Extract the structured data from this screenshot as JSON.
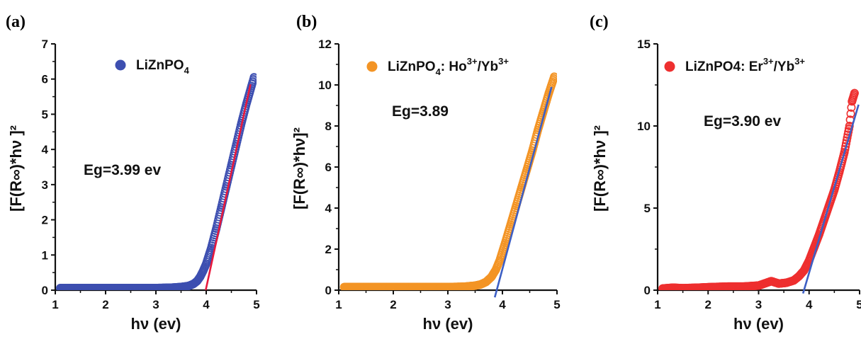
{
  "chart_data": [
    {
      "type": "scatter",
      "panel": "(a)",
      "xlabel": "hν (ev)",
      "ylabel": "[F(R∞)*hν ]²",
      "xlim": [
        1,
        5
      ],
      "ylim": [
        0,
        7
      ],
      "xticks": [
        "1",
        "2",
        "3",
        "4",
        "5"
      ],
      "yticks": [
        "0",
        "1",
        "2",
        "3",
        "4",
        "5",
        "6",
        "7"
      ],
      "legend": {
        "label_main": "LiZnPO",
        "label_sub": "4",
        "label_rest": "",
        "sup1": "",
        "mid": "",
        "sup2": "",
        "position": "top-center"
      },
      "annotation": "Eg=3.99 ev",
      "series": [
        {
          "name": "LiZnPO4",
          "color": "#3d4fb0",
          "x": [
            1.1,
            1.5,
            2.0,
            2.5,
            3.0,
            3.3,
            3.5,
            3.65,
            3.75,
            3.82,
            3.88,
            3.94,
            4.0,
            4.1,
            4.2,
            4.3,
            4.4,
            4.5,
            4.6,
            4.7,
            4.8,
            4.9,
            4.95
          ],
          "y": [
            0.06,
            0.06,
            0.06,
            0.06,
            0.06,
            0.07,
            0.09,
            0.12,
            0.18,
            0.26,
            0.38,
            0.55,
            0.75,
            1.2,
            1.75,
            2.35,
            2.95,
            3.55,
            4.15,
            4.75,
            5.3,
            5.8,
            6.05
          ]
        }
      ],
      "fit": {
        "color": "#e8193c",
        "x": [
          3.99,
          4.88
        ],
        "y": [
          0,
          5.85
        ]
      }
    },
    {
      "type": "scatter",
      "panel": "(b)",
      "xlabel": "hν (ev)",
      "ylabel": "[F(R∞)*hν]²",
      "xlim": [
        1,
        5
      ],
      "ylim": [
        0,
        12
      ],
      "xticks": [
        "1",
        "2",
        "3",
        "4",
        "5"
      ],
      "yticks": [
        "0",
        "2",
        "4",
        "6",
        "8",
        "10",
        "12"
      ],
      "legend": {
        "label_main": "LiZnPO",
        "label_sub": "4",
        "label_rest": ": Ho",
        "sup1": "3+",
        "mid": "/Yb",
        "sup2": "3+",
        "position": "top-center"
      },
      "annotation": "Eg=3.89",
      "series": [
        {
          "name": "LiZnPO4: Ho3+/Yb3+",
          "color": "#f39425",
          "x": [
            1.1,
            1.5,
            2.0,
            2.5,
            3.0,
            3.3,
            3.5,
            3.6,
            3.7,
            3.8,
            3.88,
            3.95,
            4.05,
            4.15,
            4.25,
            4.35,
            4.45,
            4.55,
            4.65,
            4.75,
            4.85,
            4.95
          ],
          "y": [
            0.15,
            0.15,
            0.15,
            0.15,
            0.15,
            0.17,
            0.22,
            0.28,
            0.4,
            0.65,
            1.0,
            1.45,
            2.3,
            3.2,
            4.1,
            5.0,
            5.9,
            6.8,
            7.8,
            8.7,
            9.6,
            10.4
          ]
        }
      ],
      "fit": {
        "color": "#3d5fc4",
        "x": [
          3.86,
          4.9
        ],
        "y": [
          -0.35,
          9.9
        ]
      }
    },
    {
      "type": "scatter",
      "panel": "(c)",
      "xlabel": "hν (ev)",
      "ylabel": "[F(R∞)*hν ]²",
      "xlim": [
        1,
        5
      ],
      "ylim": [
        0,
        15
      ],
      "xticks": [
        "1",
        "2",
        "3",
        "4",
        "5"
      ],
      "yticks": [
        "0",
        "5",
        "10",
        "15"
      ],
      "legend": {
        "label_main": "LiZnPO4",
        "label_sub": "",
        "label_rest": ": Er",
        "sup1": "3+",
        "mid": "/Yb",
        "sup2": "3+",
        "position": "top-center"
      },
      "annotation": "Eg=3.90 ev",
      "series": [
        {
          "name": "LiZnPO4: Er3+/Yb3+",
          "color": "#ee2f2f",
          "x": [
            1.1,
            1.3,
            1.5,
            1.8,
            2.0,
            2.4,
            2.7,
            3.0,
            3.25,
            3.4,
            3.55,
            3.7,
            3.8,
            3.9,
            4.0,
            4.1,
            4.2,
            4.3,
            4.4,
            4.5,
            4.6,
            4.7,
            4.8,
            4.85,
            4.9
          ],
          "y": [
            0.1,
            0.15,
            0.12,
            0.15,
            0.18,
            0.22,
            0.22,
            0.28,
            0.55,
            0.4,
            0.45,
            0.6,
            0.85,
            1.2,
            1.8,
            2.6,
            3.4,
            4.3,
            5.2,
            6.1,
            7.2,
            8.4,
            10.0,
            11.5,
            12.0
          ]
        }
      ],
      "fit": {
        "color": "#3d5fc4",
        "x": [
          3.88,
          4.98
        ],
        "y": [
          -0.2,
          11.3
        ]
      }
    }
  ]
}
